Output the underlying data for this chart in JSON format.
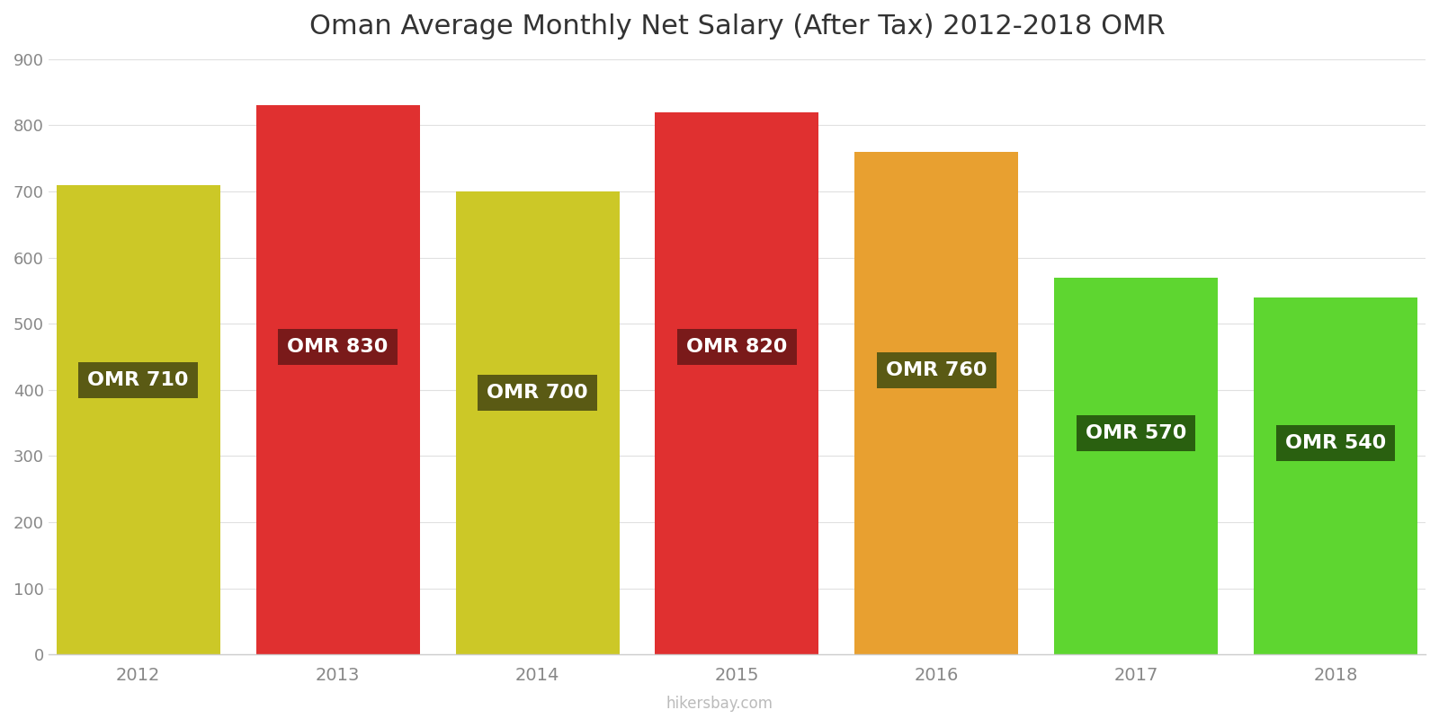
{
  "title": "Oman Average Monthly Net Salary (After Tax) 2012-2018 OMR",
  "years": [
    2012,
    2013,
    2014,
    2015,
    2016,
    2017,
    2018
  ],
  "values": [
    710,
    830,
    700,
    820,
    760,
    570,
    540
  ],
  "bar_colors": [
    "#ccc827",
    "#e03030",
    "#ccc827",
    "#e03030",
    "#e8a030",
    "#5ed630",
    "#5ed630"
  ],
  "label_bg_colors": [
    "#5a5a14",
    "#7a1a1a",
    "#5a5a14",
    "#7a1a1a",
    "#5a5a14",
    "#2a6010",
    "#2a6010"
  ],
  "labels": [
    "OMR 710",
    "OMR 830",
    "OMR 700",
    "OMR 820",
    "OMR 760",
    "OMR 570",
    "OMR 540"
  ],
  "label_y_positions": [
    415,
    465,
    395,
    465,
    430,
    335,
    320
  ],
  "ylim": [
    0,
    900
  ],
  "yticks": [
    0,
    100,
    200,
    300,
    400,
    500,
    600,
    700,
    800,
    900
  ],
  "background_color": "#ffffff",
  "grid_color": "#e0e0e0",
  "footer_text": "hikersbay.com",
  "title_fontsize": 22,
  "bar_width": 0.82,
  "xlim_left": 2011.55,
  "xlim_right": 2018.45
}
